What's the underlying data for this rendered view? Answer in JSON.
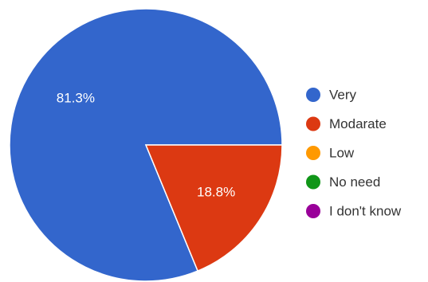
{
  "chart_data": {
    "type": "pie",
    "title": "",
    "legend_position": "right",
    "slices": [
      {
        "label": "Very",
        "value": 81.3,
        "display": "81.3%",
        "color": "#3366cc"
      },
      {
        "label": "Modarate",
        "value": 18.8,
        "display": "18.8%",
        "color": "#dc3912"
      },
      {
        "label": "Low",
        "value": 0,
        "display": "",
        "color": "#ff9900"
      },
      {
        "label": "No need",
        "value": 0,
        "display": "",
        "color": "#109618"
      },
      {
        "label": "I don't know",
        "value": 0,
        "display": "",
        "color": "#990099"
      }
    ]
  }
}
